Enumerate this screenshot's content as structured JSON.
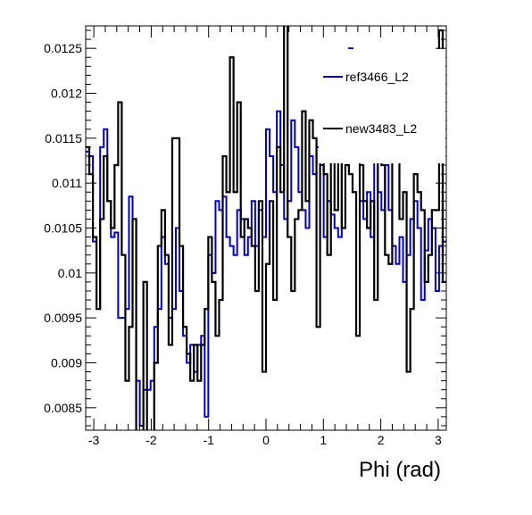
{
  "chart_data": {
    "type": "line",
    "xlabel": "Phi (rad)",
    "ylabel": "",
    "xlim": [
      -3.14159,
      3.14159
    ],
    "ylim": [
      0.00825,
      0.01275
    ],
    "grid": false,
    "legend_position": "top-right",
    "x_ticks": [
      -3,
      -2,
      -1,
      0,
      1,
      2,
      3
    ],
    "y_ticks": [
      0.0085,
      0.009,
      0.0095,
      0.01,
      0.0105,
      0.011,
      0.0115,
      0.012,
      0.0125
    ],
    "x_tick_labels": [
      "-3",
      "-2",
      "-1",
      "0",
      "1",
      "2",
      "3"
    ],
    "y_tick_labels": [
      "0.0085",
      "0.009",
      "0.0095",
      "0.01",
      "0.0105",
      "0.011",
      "0.0115",
      "0.012",
      "0.0125"
    ],
    "series": [
      {
        "name": "ref3466_L2",
        "color": "#0000cc",
        "values": [
          0.01135,
          0.0113,
          0.01035,
          0.0096,
          0.0114,
          0.0116,
          0.0108,
          0.0104,
          0.01045,
          0.0095,
          0.0095,
          0.0096,
          0.01085,
          0.0106,
          0.0088,
          0.0083,
          0.0087,
          0.0087,
          0.0088,
          0.0094,
          0.0096,
          0.0104,
          0.0101,
          0.0095,
          0.0096,
          0.0105,
          0.0098,
          0.0093,
          0.009,
          0.0092,
          0.0089,
          0.0092,
          0.0093,
          0.0084,
          0.0102,
          0.01,
          0.0108,
          0.0107,
          0.01085,
          0.0104,
          0.0103,
          0.0102,
          0.0107,
          0.0106,
          0.0102,
          0.0104,
          0.0108,
          0.0103,
          0.0107,
          0.0104,
          0.0116,
          0.0113,
          0.0109,
          0.0118,
          0.0112,
          0.0106,
          0.0108,
          0.0117,
          0.0114,
          0.0109,
          0.0107,
          0.0105,
          0.0113,
          0.0111,
          0.0114,
          0.0112,
          0.0104,
          0.0108,
          0.01065,
          0.0105,
          0.0104,
          0.0118,
          0.0121,
          0.0125,
          0.0118,
          0.0114,
          0.0108,
          0.0106,
          0.0109,
          0.0104,
          0.0114,
          0.0109,
          0.0107,
          0.0112,
          0.0107,
          0.0103,
          0.0101,
          0.0104,
          0.0099,
          0.0102,
          0.0106,
          0.0108,
          0.0105,
          0.0097,
          0.01025,
          0.0106,
          0.0105,
          0.0098,
          0.0103,
          0.01035
        ]
      },
      {
        "name": "new3483_L2",
        "color": "#000000",
        "values": [
          0.0114,
          0.0111,
          0.0104,
          0.0096,
          0.0106,
          0.0113,
          0.0108,
          0.0105,
          0.0112,
          0.0119,
          0.0102,
          0.0088,
          0.0094,
          0.0106,
          0.0077,
          0.0082,
          0.0099,
          0.0081,
          0.0075,
          0.009,
          0.0103,
          0.0107,
          0.0102,
          0.0092,
          0.0115,
          0.0115,
          0.0103,
          0.0094,
          0.0091,
          0.0088,
          0.0092,
          0.0088,
          0.0092,
          0.0096,
          0.0104,
          0.0099,
          0.0093,
          0.0097,
          0.0113,
          0.0109,
          0.0124,
          0.0109,
          0.0119,
          0.0104,
          0.0106,
          0.0105,
          0.0103,
          0.0098,
          0.0108,
          0.0089,
          0.0101,
          0.0108,
          0.0097,
          0.0114,
          0.0109,
          0.0136,
          0.0104,
          0.0098,
          0.0106,
          0.0107,
          0.0118,
          0.0108,
          0.0117,
          0.0115,
          0.0094,
          0.0117,
          0.0111,
          0.0102,
          0.0113,
          0.0107,
          0.0113,
          0.0105,
          0.0112,
          0.0111,
          0.0109,
          0.0093,
          0.0112,
          0.0108,
          0.0105,
          0.0108,
          0.0097,
          0.0116,
          0.0112,
          0.0102,
          0.0101,
          0.0121,
          0.0115,
          0.0106,
          0.0109,
          0.0089,
          0.0096,
          0.0111,
          0.0109,
          0.0107,
          0.0099,
          0.0102,
          0.0107,
          0.0107,
          0.0127,
          0.0099
        ]
      }
    ]
  }
}
